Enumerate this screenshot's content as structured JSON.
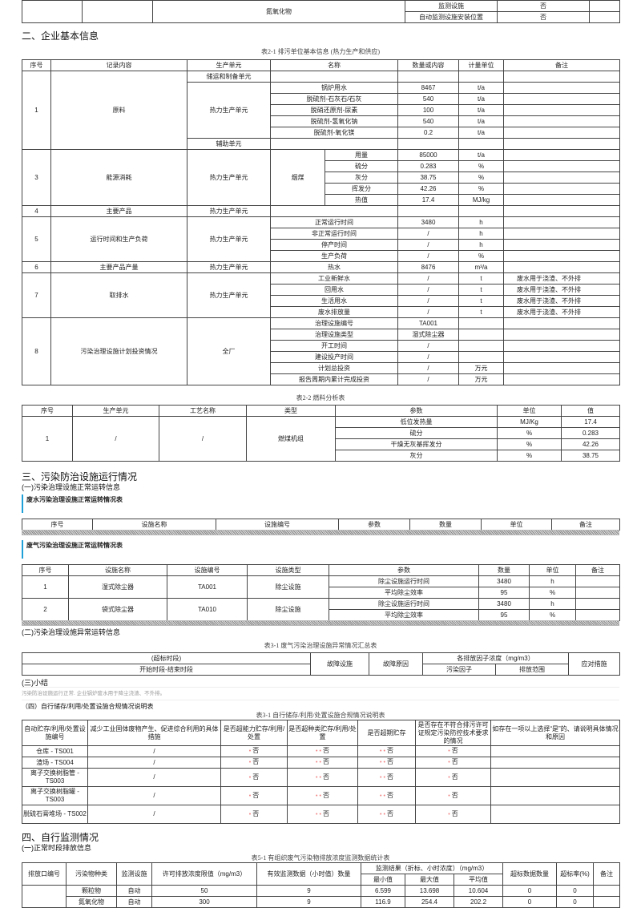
{
  "top_table": {
    "pollutant": "氮氧化物",
    "rows": [
      [
        "监测设施",
        "否"
      ],
      [
        "自动监测设施安装位置",
        "否"
      ]
    ]
  },
  "section2": {
    "heading": "二、企业基本信息"
  },
  "t21": {
    "caption": "表2-1 排污单位基本信息 (热力生产和供应)",
    "headers": [
      "序号",
      "记录内容",
      "生产单元",
      "名称",
      "数量或内容",
      "计量单位",
      "备注"
    ],
    "g1": {
      "no": "1",
      "item": "原料",
      "unit_a": "储运和制备单元",
      "unit_b": "热力生产单元",
      "unit_c": "辅助单元",
      "rows": [
        [
          "锅炉用水",
          "8467",
          "t/a"
        ],
        [
          "脱硫剂-石灰石/石灰",
          "540",
          "t/a"
        ],
        [
          "脱硝还原剂-尿素",
          "100",
          "t/a"
        ],
        [
          "脱硫剂-氢氧化钠",
          "540",
          "t/a"
        ],
        [
          "脱硫剂-氧化镁",
          "0.2",
          "t/a"
        ]
      ]
    },
    "g3": {
      "no": "3",
      "item": "能源消耗",
      "unit": "热力生产单元",
      "fuel": "烟煤",
      "rows": [
        [
          "用量",
          "85000",
          "t/a"
        ],
        [
          "硫分",
          "0.283",
          "%"
        ],
        [
          "灰分",
          "38.75",
          "%"
        ],
        [
          "挥发分",
          "42.26",
          "%"
        ],
        [
          "热值",
          "17.4",
          "MJ/kg"
        ]
      ]
    },
    "g4": {
      "no": "4",
      "item": "主要产品",
      "unit": "热力生产单元"
    },
    "g5": {
      "no": "5",
      "item": "运行时间和生产负荷",
      "unit": "热力生产单元",
      "rows": [
        [
          "正常运行时间",
          "3480",
          "h"
        ],
        [
          "非正常运行时间",
          "/",
          "h"
        ],
        [
          "停产时间",
          "/",
          "h"
        ],
        [
          "生产负荷",
          "/",
          "%"
        ]
      ]
    },
    "g6": {
      "no": "6",
      "item": "主要产品产量",
      "unit": "热力生产单元",
      "row": [
        "热水",
        "8476",
        "m³/a"
      ]
    },
    "g7": {
      "no": "7",
      "item": "取排水",
      "unit": "热力生产单元",
      "rows": [
        [
          "工业新鲜水",
          "/",
          "t",
          "废水用于浇渣、不外排"
        ],
        [
          "回用水",
          "/",
          "t",
          "废水用于浇渣、不外排"
        ],
        [
          "生活用水",
          "/",
          "t",
          "废水用于浇渣、不外排"
        ],
        [
          "废水排放量",
          "/",
          "t",
          "废水用于浇渣、不外排"
        ]
      ]
    },
    "g8": {
      "no": "8",
      "item": "污染治理设施计划投资情况",
      "unit": "全厂",
      "rows": [
        [
          "治理设施编号",
          "TA001",
          ""
        ],
        [
          "治理设施类型",
          "湿式除尘器",
          ""
        ],
        [
          "开工时间",
          "/",
          ""
        ],
        [
          "建设投产时间",
          "/",
          ""
        ],
        [
          "计划总投资",
          "/",
          "万元"
        ],
        [
          "报告周期内累计完成投资",
          "/",
          "万元"
        ]
      ]
    }
  },
  "t22": {
    "caption": "表2-2 燃料分析表",
    "headers": [
      "序号",
      "生产单元",
      "工艺名称",
      "类型",
      "参数",
      "单位",
      "值"
    ],
    "no": "1",
    "unit": "/",
    "process": "/",
    "type": "燃煤机组",
    "rows": [
      [
        "低位发热量",
        "MJ/Kg",
        "17.4"
      ],
      [
        "硫分",
        "%",
        "0.283"
      ],
      [
        "干燥无灰基挥发分",
        "%",
        "42.26"
      ],
      [
        "灰分",
        "%",
        "38.75"
      ]
    ]
  },
  "section3": {
    "heading": "三、污染防治设施运行情况",
    "sub1": "(一)污染治理设施正常运转信息",
    "water": {
      "label": "废水污染治理设施正常运转情况表",
      "headers": [
        "序号",
        "设施名称",
        "设施编号",
        "参数",
        "数量",
        "单位",
        "备注"
      ]
    },
    "gas": {
      "label": "废气污染治理设施正常运转情况表",
      "headers": [
        "序号",
        "设施名称",
        "设施编号",
        "设施类型",
        "参数",
        "数量",
        "单位",
        "备注"
      ],
      "rows": [
        {
          "no": "1",
          "name": "湿式除尘器",
          "code": "TA001",
          "type": "除尘设施",
          "params": [
            [
              "除尘设施运行时间",
              "3480",
              "h"
            ],
            [
              "平均除尘效率",
              "95",
              "%"
            ]
          ]
        },
        {
          "no": "2",
          "name": "袋式除尘器",
          "code": "TA010",
          "type": "除尘设施",
          "params": [
            [
              "除尘设施运行时间",
              "3480",
              "h"
            ],
            [
              "平均除尘效率",
              "95",
              "%"
            ]
          ]
        }
      ]
    },
    "sub2": "(二)污染治理设施异常运转信息",
    "t31": {
      "caption": "表3-1 废气污染治理设施异常情况汇总表",
      "period": "(超标时段)",
      "period2": "开始时段-结束时段",
      "fault": "故障设施",
      "reason": "故障原因",
      "conc": "各排放因子浓度（mg/m3）",
      "factor": "污染因子",
      "range": "排放范围",
      "measure": "应对措施"
    },
    "sub3": "(三)小结",
    "summary": "污染防治设施运行正常. 企业锅炉废水用于降尘浇渣、不外排。",
    "sub4": "（四）自行储存/利用/处置设施合规情况说明表",
    "tstore": {
      "caption": "表3-1 自行储存/利用/处置设施合规情况说明表",
      "headers": [
        "自动贮存/利用/处置设施编号",
        "减少工业固体废物产生、促进综合利用的具体措施",
        "是否超能力贮存/利用/处置",
        "是否超种类贮存/利用/处置",
        "是否超期贮存",
        "是否存在不符合排污许可证规定污染防控技术要求的情况",
        "如存在一项以上选择“是”的、请说明具体情况和原因"
      ],
      "rows": [
        [
          "仓库 - TS001",
          "/",
          "否",
          "否",
          "否",
          "否",
          ""
        ],
        [
          "渣场 - TS004",
          "/",
          "否",
          "否",
          "否",
          "否",
          ""
        ],
        [
          "离子交换树脂管 - TS003",
          "/",
          "否",
          "否",
          "否",
          "否",
          ""
        ],
        [
          "离子交换树脂罐 - TS003",
          "/",
          "否",
          "否",
          "否",
          "否",
          ""
        ],
        [
          "脱硫石膏堆场 - TS002",
          "/",
          "否",
          "否",
          "否",
          "否",
          ""
        ]
      ],
      "dot_color": "#f08080"
    }
  },
  "section4": {
    "heading": "四、自行监测情况",
    "sub1": "(一)正常时段排放信息",
    "t51": {
      "caption": "表5-1 有组织废气污染物排放浓度监测数据统计表",
      "headers": [
        "排放口编号",
        "污染物种类",
        "监测设施",
        "许可排放浓度限值（mg/m3）",
        "有效监测数据（小时值）数量",
        "监测结果（折标、小时浓度）（mg/m3）",
        "超标数据数量",
        "超标率(%)",
        "备注"
      ],
      "subheaders": [
        "最小值",
        "最大值",
        "平均值"
      ],
      "rows": [
        [
          "颗粒物",
          "自动",
          "50",
          "9",
          "6.599",
          "13.698",
          "10.604",
          "0",
          "0",
          ""
        ],
        [
          "氮氧化物",
          "自动",
          "300",
          "9",
          "116.9",
          "254.4",
          "202.2",
          "0",
          "0",
          ""
        ]
      ]
    }
  },
  "colors": {
    "accent_bar": "#1e9fd8",
    "border": "#444444"
  }
}
